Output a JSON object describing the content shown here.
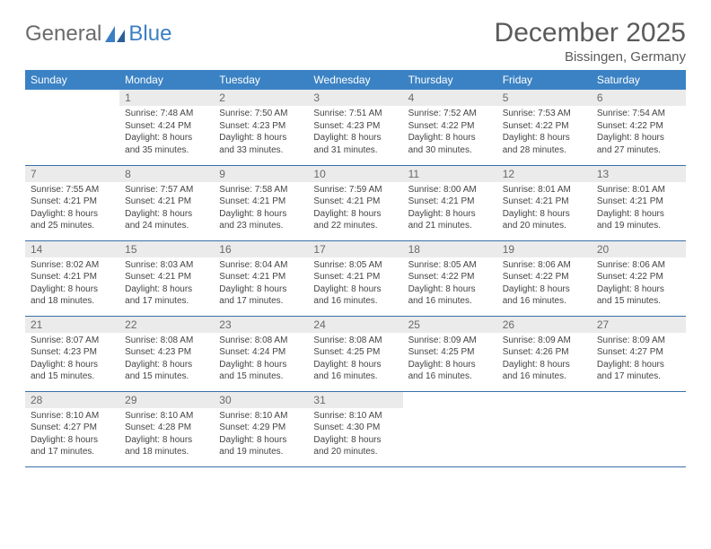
{
  "logo": {
    "text1": "General",
    "text2": "Blue"
  },
  "title": "December 2025",
  "location": "Bissingen, Germany",
  "colors": {
    "header_bg": "#3b82c4",
    "header_text": "#ffffff",
    "daynum_bg": "#ebebeb",
    "daynum_text": "#696969",
    "row_border": "#3b6fa8",
    "logo_gray": "#6b6b6b",
    "logo_blue": "#3b7fc4",
    "title_color": "#5a5a5a",
    "body_text": "#444444"
  },
  "weekdays": [
    "Sunday",
    "Monday",
    "Tuesday",
    "Wednesday",
    "Thursday",
    "Friday",
    "Saturday"
  ],
  "weeks": [
    [
      {
        "n": "",
        "sr": "",
        "ss": "",
        "dl": ""
      },
      {
        "n": "1",
        "sr": "7:48 AM",
        "ss": "4:24 PM",
        "dl": "8 hours and 35 minutes."
      },
      {
        "n": "2",
        "sr": "7:50 AM",
        "ss": "4:23 PM",
        "dl": "8 hours and 33 minutes."
      },
      {
        "n": "3",
        "sr": "7:51 AM",
        "ss": "4:23 PM",
        "dl": "8 hours and 31 minutes."
      },
      {
        "n": "4",
        "sr": "7:52 AM",
        "ss": "4:22 PM",
        "dl": "8 hours and 30 minutes."
      },
      {
        "n": "5",
        "sr": "7:53 AM",
        "ss": "4:22 PM",
        "dl": "8 hours and 28 minutes."
      },
      {
        "n": "6",
        "sr": "7:54 AM",
        "ss": "4:22 PM",
        "dl": "8 hours and 27 minutes."
      }
    ],
    [
      {
        "n": "7",
        "sr": "7:55 AM",
        "ss": "4:21 PM",
        "dl": "8 hours and 25 minutes."
      },
      {
        "n": "8",
        "sr": "7:57 AM",
        "ss": "4:21 PM",
        "dl": "8 hours and 24 minutes."
      },
      {
        "n": "9",
        "sr": "7:58 AM",
        "ss": "4:21 PM",
        "dl": "8 hours and 23 minutes."
      },
      {
        "n": "10",
        "sr": "7:59 AM",
        "ss": "4:21 PM",
        "dl": "8 hours and 22 minutes."
      },
      {
        "n": "11",
        "sr": "8:00 AM",
        "ss": "4:21 PM",
        "dl": "8 hours and 21 minutes."
      },
      {
        "n": "12",
        "sr": "8:01 AM",
        "ss": "4:21 PM",
        "dl": "8 hours and 20 minutes."
      },
      {
        "n": "13",
        "sr": "8:01 AM",
        "ss": "4:21 PM",
        "dl": "8 hours and 19 minutes."
      }
    ],
    [
      {
        "n": "14",
        "sr": "8:02 AM",
        "ss": "4:21 PM",
        "dl": "8 hours and 18 minutes."
      },
      {
        "n": "15",
        "sr": "8:03 AM",
        "ss": "4:21 PM",
        "dl": "8 hours and 17 minutes."
      },
      {
        "n": "16",
        "sr": "8:04 AM",
        "ss": "4:21 PM",
        "dl": "8 hours and 17 minutes."
      },
      {
        "n": "17",
        "sr": "8:05 AM",
        "ss": "4:21 PM",
        "dl": "8 hours and 16 minutes."
      },
      {
        "n": "18",
        "sr": "8:05 AM",
        "ss": "4:22 PM",
        "dl": "8 hours and 16 minutes."
      },
      {
        "n": "19",
        "sr": "8:06 AM",
        "ss": "4:22 PM",
        "dl": "8 hours and 16 minutes."
      },
      {
        "n": "20",
        "sr": "8:06 AM",
        "ss": "4:22 PM",
        "dl": "8 hours and 15 minutes."
      }
    ],
    [
      {
        "n": "21",
        "sr": "8:07 AM",
        "ss": "4:23 PM",
        "dl": "8 hours and 15 minutes."
      },
      {
        "n": "22",
        "sr": "8:08 AM",
        "ss": "4:23 PM",
        "dl": "8 hours and 15 minutes."
      },
      {
        "n": "23",
        "sr": "8:08 AM",
        "ss": "4:24 PM",
        "dl": "8 hours and 15 minutes."
      },
      {
        "n": "24",
        "sr": "8:08 AM",
        "ss": "4:25 PM",
        "dl": "8 hours and 16 minutes."
      },
      {
        "n": "25",
        "sr": "8:09 AM",
        "ss": "4:25 PM",
        "dl": "8 hours and 16 minutes."
      },
      {
        "n": "26",
        "sr": "8:09 AM",
        "ss": "4:26 PM",
        "dl": "8 hours and 16 minutes."
      },
      {
        "n": "27",
        "sr": "8:09 AM",
        "ss": "4:27 PM",
        "dl": "8 hours and 17 minutes."
      }
    ],
    [
      {
        "n": "28",
        "sr": "8:10 AM",
        "ss": "4:27 PM",
        "dl": "8 hours and 17 minutes."
      },
      {
        "n": "29",
        "sr": "8:10 AM",
        "ss": "4:28 PM",
        "dl": "8 hours and 18 minutes."
      },
      {
        "n": "30",
        "sr": "8:10 AM",
        "ss": "4:29 PM",
        "dl": "8 hours and 19 minutes."
      },
      {
        "n": "31",
        "sr": "8:10 AM",
        "ss": "4:30 PM",
        "dl": "8 hours and 20 minutes."
      },
      {
        "n": "",
        "sr": "",
        "ss": "",
        "dl": ""
      },
      {
        "n": "",
        "sr": "",
        "ss": "",
        "dl": ""
      },
      {
        "n": "",
        "sr": "",
        "ss": "",
        "dl": ""
      }
    ]
  ],
  "labels": {
    "sunrise": "Sunrise:",
    "sunset": "Sunset:",
    "daylight": "Daylight:"
  }
}
